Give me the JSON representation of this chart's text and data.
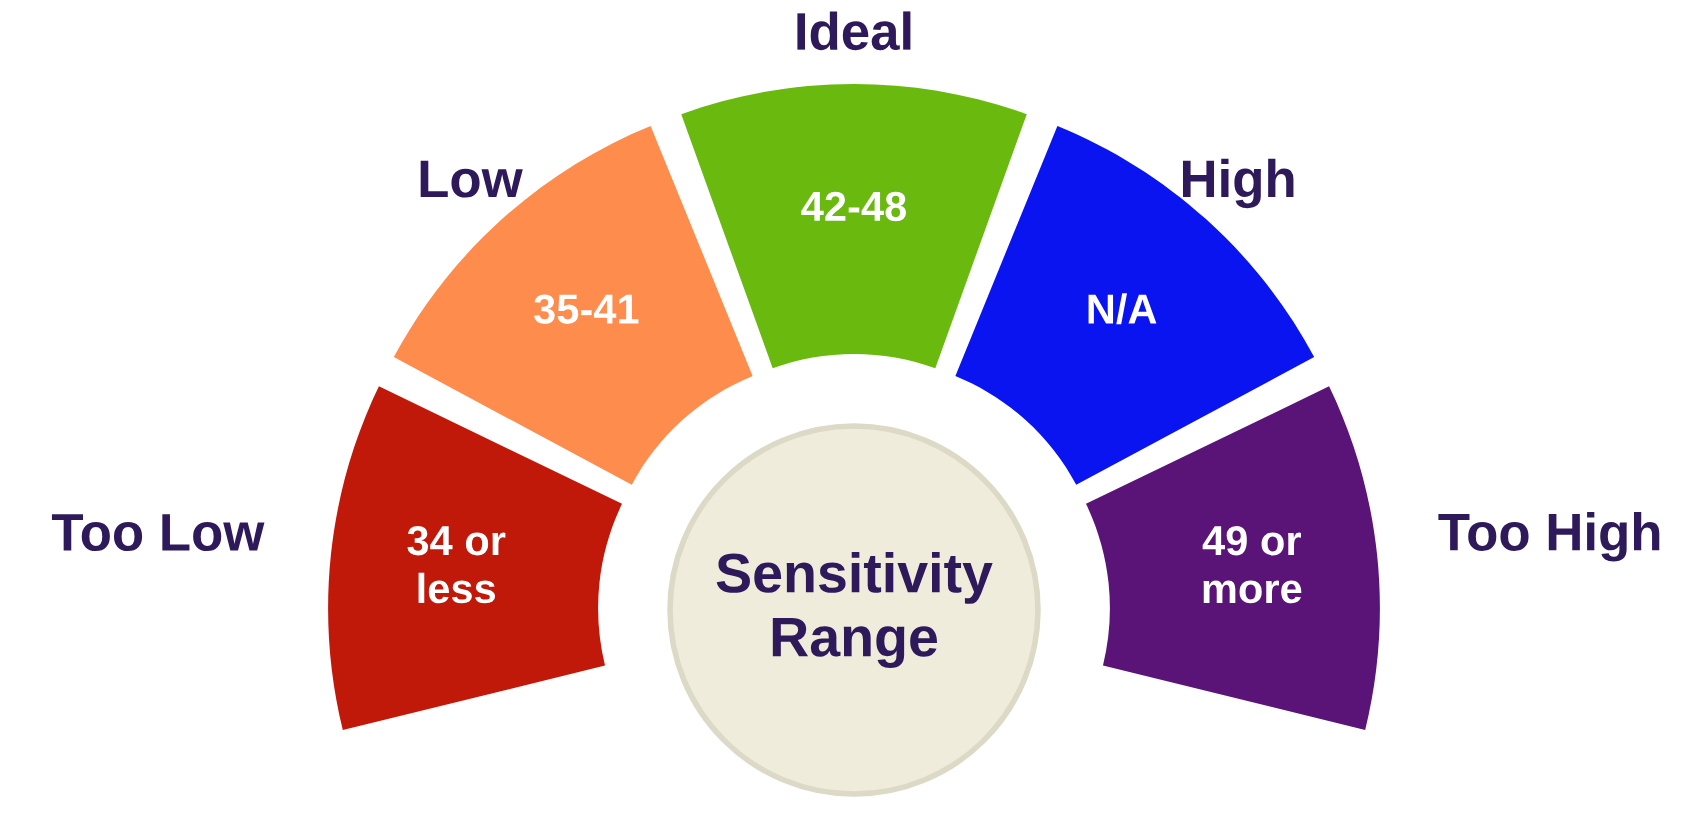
{
  "chart_data": {
    "type": "donut",
    "title": "Sensitivity Range",
    "categories": [
      "Too Low",
      "Low",
      "Ideal",
      "High",
      "Too High"
    ],
    "values": [
      20,
      20,
      20,
      20,
      20
    ],
    "colors": [
      "#c0190a",
      "#fe8c4c",
      "#6ab90f",
      "#0a14f0",
      "#5a1478"
    ],
    "annotations": [
      "34 or\nless",
      "35-41",
      "42-48",
      "N/A",
      "49 or\nmore"
    ]
  }
}
